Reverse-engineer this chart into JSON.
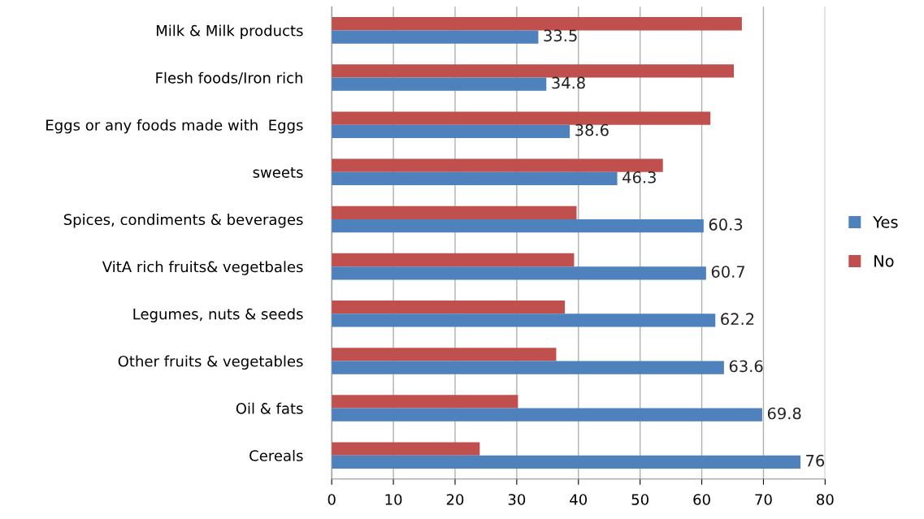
{
  "chart_data": {
    "type": "bar",
    "orientation": "horizontal",
    "categories": [
      "Milk & Milk products",
      "Flesh foods/Iron rich",
      "Eggs or any foods made with  Eggs",
      "sweets",
      "Spices, condiments & beverages",
      "VitA rich fruits& vegetbales",
      "Legumes, nuts & seeds",
      "Other fruits & vegetables",
      "Oil & fats",
      "Cereals"
    ],
    "series": [
      {
        "name": "No",
        "color": "#c0504d",
        "values": [
          66.5,
          65.2,
          61.4,
          53.7,
          39.7,
          39.3,
          37.8,
          36.4,
          30.2,
          24
        ]
      },
      {
        "name": "Yes",
        "color": "#4f81bd",
        "values": [
          33.5,
          34.8,
          38.6,
          46.3,
          60.3,
          60.7,
          62.2,
          63.6,
          69.8,
          76
        ],
        "value_labels": [
          "33.5",
          "34.8",
          "38.6",
          "46.3",
          "60.3",
          "60.7",
          "62.2",
          "63.6",
          "69.8",
          "76"
        ]
      }
    ],
    "xlim": [
      0,
      80
    ],
    "xticks": [
      0,
      10,
      20,
      30,
      40,
      50,
      60,
      70,
      80
    ],
    "grid": "x",
    "legend": "right"
  }
}
